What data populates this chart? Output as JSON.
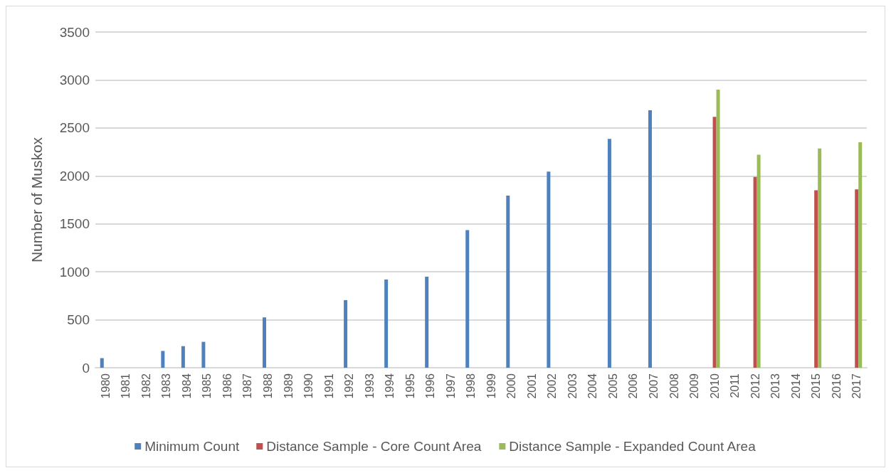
{
  "chart_data": {
    "type": "bar",
    "ylabel": "Number of Muskox",
    "categories": [
      "1980",
      "1981",
      "1982",
      "1983",
      "1984",
      "1985",
      "1986",
      "1987",
      "1988",
      "1989",
      "1990",
      "1991",
      "1992",
      "1993",
      "1994",
      "1995",
      "1996",
      "1997",
      "1998",
      "1999",
      "2000",
      "2001",
      "2002",
      "2003",
      "2004",
      "2005",
      "2006",
      "2007",
      "2008",
      "2009",
      "2010",
      "2011",
      "2012",
      "2013",
      "2014",
      "2015",
      "2016",
      "2017"
    ],
    "series": [
      {
        "name": "Minimum Count",
        "color": "#4f81bd",
        "values": [
          100,
          null,
          null,
          175,
          225,
          270,
          null,
          null,
          525,
          null,
          null,
          null,
          705,
          null,
          920,
          null,
          950,
          null,
          1435,
          null,
          1795,
          null,
          2045,
          null,
          null,
          2385,
          null,
          2685,
          null,
          null,
          null,
          null,
          null,
          null,
          null,
          null,
          null,
          null
        ]
      },
      {
        "name": "Distance Sample - Core Count Area",
        "color": "#c0504d",
        "values": [
          null,
          null,
          null,
          null,
          null,
          null,
          null,
          null,
          null,
          null,
          null,
          null,
          null,
          null,
          null,
          null,
          null,
          null,
          null,
          null,
          null,
          null,
          null,
          null,
          null,
          null,
          null,
          null,
          null,
          null,
          2615,
          null,
          1990,
          null,
          null,
          1850,
          null,
          1860
        ]
      },
      {
        "name": "Distance Sample - Expanded Count Area",
        "color": "#9bbb59",
        "values": [
          null,
          null,
          null,
          null,
          null,
          null,
          null,
          null,
          null,
          null,
          null,
          null,
          null,
          null,
          null,
          null,
          null,
          null,
          null,
          null,
          null,
          null,
          null,
          null,
          null,
          null,
          null,
          null,
          null,
          null,
          2900,
          null,
          2220,
          null,
          null,
          2285,
          null,
          2350
        ]
      }
    ],
    "ylim": [
      0,
      3500
    ],
    "yticks": [
      0,
      500,
      1000,
      1500,
      2000,
      2500,
      3000,
      3500
    ],
    "grid": "y",
    "legend": "bottom"
  }
}
